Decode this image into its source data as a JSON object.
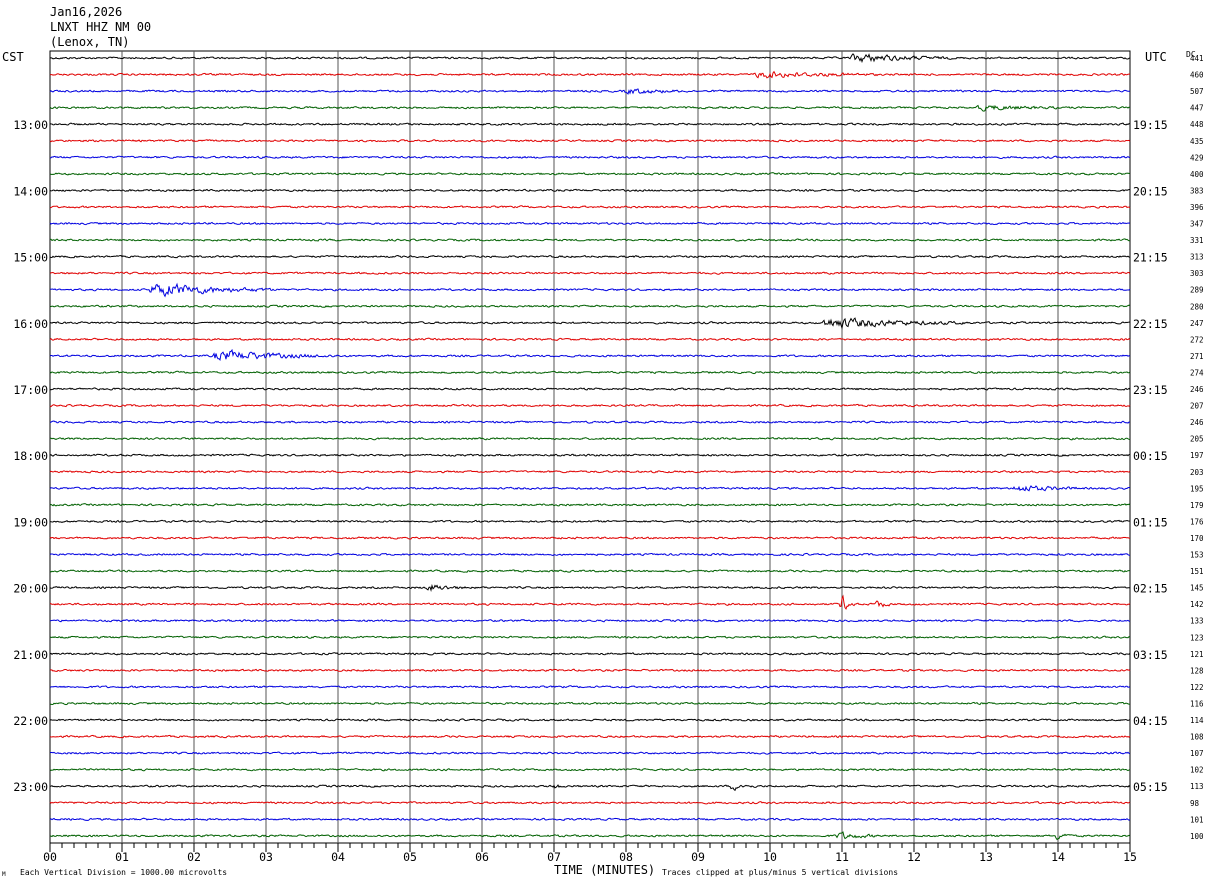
{
  "header": {
    "date": "Jan16,2026",
    "station": "LNXT HHZ NM 00",
    "location": "(Lenox, TN)"
  },
  "chart_data": {
    "type": "line",
    "plot_kind": "helicorder",
    "xlabel": "TIME (MINUTES)",
    "x_ticks": [
      "00",
      "01",
      "02",
      "03",
      "04",
      "05",
      "06",
      "07",
      "08",
      "09",
      "10",
      "11",
      "12",
      "13",
      "14",
      "15"
    ],
    "xlim": [
      0,
      15
    ],
    "left_axis_label": "CST",
    "right_axis_label": "UTC",
    "dc_label": "DC",
    "trace_colors": [
      "#000000",
      "#e00000",
      "#0000e0",
      "#006000"
    ],
    "left_time_labels": [
      "13:00",
      "14:00",
      "15:00",
      "16:00",
      "17:00",
      "18:00",
      "19:00",
      "20:00",
      "21:00",
      "22:00",
      "23:00"
    ],
    "right_time_labels": [
      "19:15",
      "20:15",
      "21:15",
      "22:15",
      "23:15",
      "00:15",
      "01:15",
      "02:15",
      "03:15",
      "04:15",
      "05:15"
    ],
    "dc_offsets": [
      441,
      460,
      507,
      447,
      448,
      435,
      429,
      400,
      383,
      396,
      347,
      331,
      313,
      303,
      289,
      280,
      247,
      272,
      271,
      274,
      246,
      207,
      246,
      205,
      197,
      203,
      195,
      179,
      176,
      170,
      153,
      151,
      145,
      142,
      133,
      123,
      121,
      128,
      122,
      116,
      114,
      108,
      107,
      102,
      113,
      98,
      101,
      100
    ],
    "events": [
      {
        "trace": 0,
        "minute": 11.3,
        "amplitude": 5,
        "duration": 1.2
      },
      {
        "trace": 1,
        "minute": 10.0,
        "amplitude": 3.5,
        "duration": 1.5
      },
      {
        "trace": 2,
        "minute": 8.1,
        "amplitude": 3,
        "duration": 0.8
      },
      {
        "trace": 3,
        "minute": 13.0,
        "amplitude": 3,
        "duration": 1.0
      },
      {
        "trace": 14,
        "minute": 1.6,
        "amplitude": 8,
        "duration": 1.5
      },
      {
        "trace": 16,
        "minute": 11.0,
        "amplitude": 6,
        "duration": 1.8
      },
      {
        "trace": 18,
        "minute": 2.5,
        "amplitude": 6,
        "duration": 1.5
      },
      {
        "trace": 26,
        "minute": 13.5,
        "amplitude": 4,
        "duration": 0.8
      },
      {
        "trace": 32,
        "minute": 5.3,
        "amplitude": 4,
        "duration": 0.5
      },
      {
        "trace": 33,
        "minute": 11.0,
        "amplitude": 10,
        "duration": 0.2
      },
      {
        "trace": 33,
        "minute": 11.5,
        "amplitude": 5,
        "duration": 0.2
      },
      {
        "trace": 47,
        "minute": 11.0,
        "amplitude": 4,
        "duration": 0.5
      },
      {
        "trace": 47,
        "minute": 14.0,
        "amplitude": 5,
        "duration": 0.2
      },
      {
        "trace": 44,
        "minute": 7.0,
        "amplitude": 5,
        "duration": 0.1
      },
      {
        "trace": 44,
        "minute": 9.5,
        "amplitude": 4,
        "duration": 0.3
      }
    ]
  },
  "footer": {
    "left": "Each Vertical Division = 1000.00 microvolts",
    "right": "Traces clipped at plus/minus 5 vertical divisions",
    "corner_mark": "M"
  }
}
